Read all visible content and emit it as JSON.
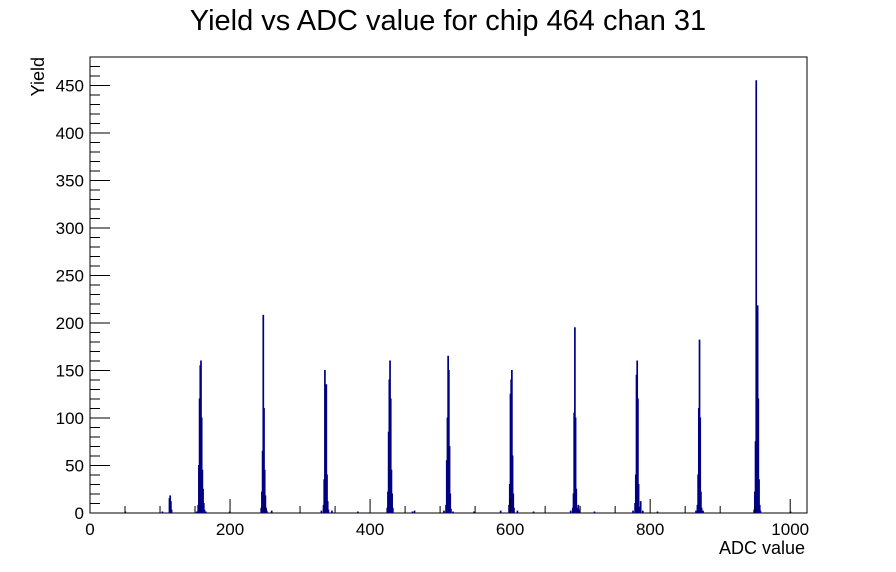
{
  "chart_data": {
    "type": "histogram",
    "title": "Yield vs ADC value for chip 464 chan 31",
    "xlabel": "ADC value",
    "ylabel": "Yield",
    "xlim": [
      0,
      1024
    ],
    "ylim": [
      0,
      480
    ],
    "grid": false,
    "legend": "none",
    "line_color": "#000080",
    "x_ticks": [
      0,
      200,
      400,
      600,
      800,
      1000
    ],
    "y_ticks": [
      0,
      50,
      100,
      150,
      200,
      250,
      300,
      350,
      400,
      450
    ],
    "bins": [
      [
        50,
        1
      ],
      [
        103,
        1
      ],
      [
        113,
        15
      ],
      [
        114,
        18
      ],
      [
        115,
        12
      ],
      [
        116,
        3
      ],
      [
        152,
        1
      ],
      [
        154,
        8
      ],
      [
        155,
        50
      ],
      [
        156,
        120
      ],
      [
        157,
        155
      ],
      [
        158,
        160
      ],
      [
        159,
        100
      ],
      [
        160,
        45
      ],
      [
        161,
        25
      ],
      [
        162,
        10
      ],
      [
        163,
        3
      ],
      [
        165,
        1
      ],
      [
        199,
        1
      ],
      [
        244,
        5
      ],
      [
        245,
        22
      ],
      [
        246,
        65
      ],
      [
        247,
        208
      ],
      [
        248,
        110
      ],
      [
        249,
        45
      ],
      [
        250,
        18
      ],
      [
        251,
        5
      ],
      [
        252,
        2
      ],
      [
        259,
        2
      ],
      [
        330,
        2
      ],
      [
        333,
        8
      ],
      [
        334,
        35
      ],
      [
        335,
        150
      ],
      [
        336,
        120
      ],
      [
        337,
        135
      ],
      [
        338,
        40
      ],
      [
        339,
        12
      ],
      [
        340,
        3
      ],
      [
        345,
        2
      ],
      [
        382,
        1
      ],
      [
        424,
        5
      ],
      [
        425,
        22
      ],
      [
        426,
        85
      ],
      [
        427,
        140
      ],
      [
        428,
        160
      ],
      [
        429,
        120
      ],
      [
        430,
        45
      ],
      [
        431,
        20
      ],
      [
        432,
        5
      ],
      [
        460,
        1
      ],
      [
        463,
        2
      ],
      [
        505,
        2
      ],
      [
        508,
        8
      ],
      [
        509,
        55
      ],
      [
        510,
        100
      ],
      [
        511,
        165
      ],
      [
        512,
        150
      ],
      [
        513,
        70
      ],
      [
        514,
        20
      ],
      [
        515,
        4
      ],
      [
        518,
        1
      ],
      [
        548,
        1
      ],
      [
        586,
        2
      ],
      [
        598,
        8
      ],
      [
        599,
        30
      ],
      [
        600,
        125
      ],
      [
        601,
        140
      ],
      [
        602,
        150
      ],
      [
        603,
        60
      ],
      [
        604,
        20
      ],
      [
        605,
        5
      ],
      [
        610,
        2
      ],
      [
        633,
        1
      ],
      [
        686,
        2
      ],
      [
        689,
        5
      ],
      [
        690,
        20
      ],
      [
        691,
        105
      ],
      [
        692,
        195
      ],
      [
        693,
        100
      ],
      [
        694,
        25
      ],
      [
        695,
        5
      ],
      [
        697,
        8
      ],
      [
        698,
        3
      ],
      [
        720,
        1
      ],
      [
        775,
        2
      ],
      [
        778,
        10
      ],
      [
        779,
        40
      ],
      [
        780,
        145
      ],
      [
        781,
        160
      ],
      [
        782,
        120
      ],
      [
        783,
        30
      ],
      [
        784,
        6
      ],
      [
        786,
        12
      ],
      [
        789,
        2
      ],
      [
        810,
        1
      ],
      [
        865,
        2
      ],
      [
        867,
        8
      ],
      [
        868,
        40
      ],
      [
        869,
        110
      ],
      [
        870,
        182
      ],
      [
        871,
        100
      ],
      [
        872,
        22
      ],
      [
        873,
        5
      ],
      [
        875,
        2
      ],
      [
        948,
        3
      ],
      [
        949,
        22
      ],
      [
        950,
        75
      ],
      [
        951,
        455
      ],
      [
        952,
        185
      ],
      [
        953,
        218
      ],
      [
        954,
        120
      ],
      [
        955,
        35
      ],
      [
        956,
        8
      ],
      [
        957,
        2
      ],
      [
        1000,
        1
      ]
    ]
  }
}
